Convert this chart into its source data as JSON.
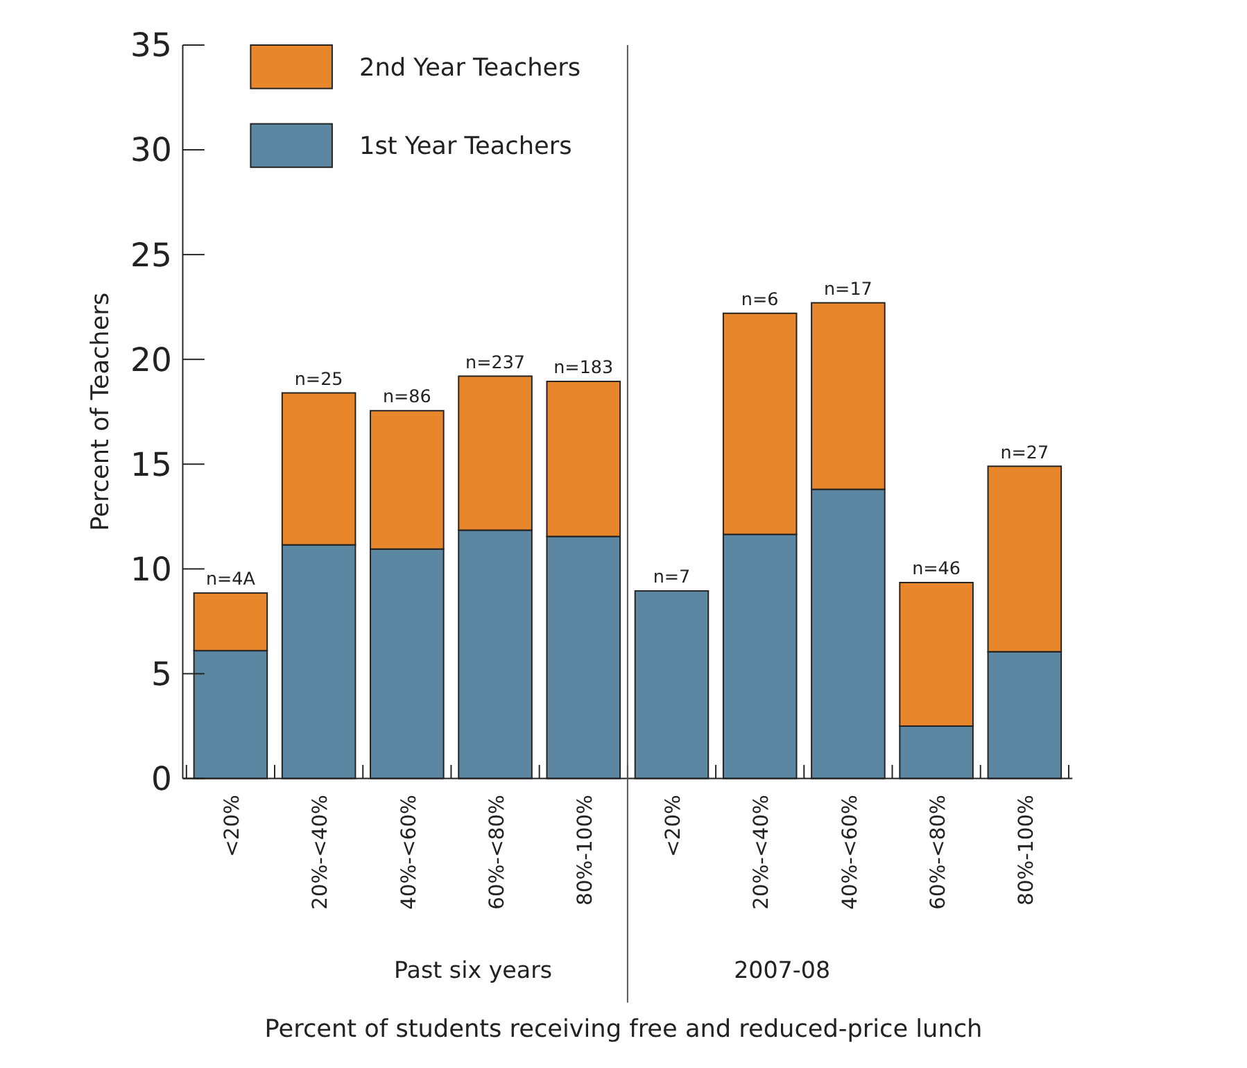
{
  "chart_data": {
    "type": "bar",
    "stacked": true,
    "xlabel": "Percent of students receiving free and reduced-price lunch",
    "ylabel": "Percent  of  Teachers",
    "categories": [
      "<20%",
      "20%-<40%",
      "40%-<60%",
      "60%-<80%",
      "80%-100%",
      "<20%",
      "20%-<40%",
      "40%-<60%",
      "60%-<80%",
      "80%-100%"
    ],
    "series": [
      {
        "name": "1st Year Teachers",
        "color": "#5b87a3",
        "values": [
          6.1,
          11.15,
          10.95,
          11.85,
          11.55,
          8.95,
          11.65,
          13.8,
          2.5,
          6.05
        ]
      },
      {
        "name": "2nd Year Teachers",
        "color": "#e8862b",
        "values": [
          2.75,
          7.25,
          6.6,
          7.35,
          7.4,
          0,
          10.55,
          8.9,
          6.85,
          8.85
        ]
      }
    ],
    "annotations": [
      "Past six years",
      "2007-08",
      "n=4A",
      "n=25",
      "n=86",
      "n=237",
      "n=183",
      "n=7",
      "n=6",
      "n=17",
      "n=46",
      "n=27"
    ],
    "ylim": [
      0,
      35
    ],
    "yticks": [
      0,
      5,
      10,
      15,
      20,
      25,
      30,
      35
    ],
    "legend": "top left"
  }
}
